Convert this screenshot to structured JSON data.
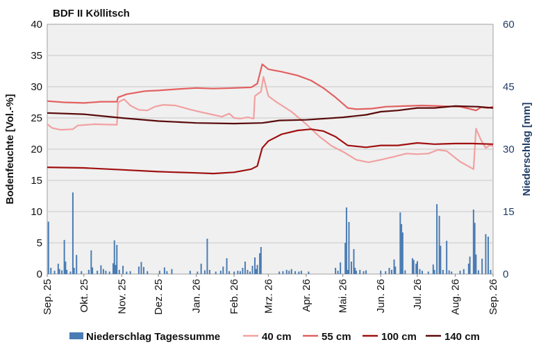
{
  "chart_data": {
    "type": "line",
    "title": "BDF II Köllitsch",
    "ylabel_left": "Bodenfeuchte [Vol.-%]",
    "ylabel_right": "Niederschlag [mm]",
    "ylim_left": [
      0,
      40
    ],
    "ylim_right": [
      0,
      60
    ],
    "yticks_left": [
      "0",
      "5",
      "10",
      "15",
      "20",
      "25",
      "30",
      "35",
      "40"
    ],
    "yticks_right": [
      "0",
      "15",
      "30",
      "45",
      "60"
    ],
    "x_range": [
      "2025-09-01",
      "2026-09-01"
    ],
    "x_tick_labels": [
      "Sep. 25",
      "Okt. 25",
      "Nov. 25",
      "Dez. 25",
      "Jan. 26",
      "Feb. 26",
      "Mrz. 26",
      "Apr. 26",
      "Mai. 26",
      "Jun. 26",
      "Jul. 26",
      "Aug. 26",
      "Sep. 26"
    ],
    "x_tick_dates": [
      "2025-09-01",
      "2025-10-01",
      "2025-11-01",
      "2025-12-01",
      "2026-01-01",
      "2026-02-01",
      "2026-03-01",
      "2026-04-01",
      "2026-05-01",
      "2026-06-01",
      "2026-07-01",
      "2026-08-01",
      "2026-09-01"
    ],
    "grid": "horizontal",
    "legend_position": "bottom",
    "series": [
      {
        "name": "40 cm",
        "axis": "left",
        "kind": "line",
        "color": "#f2a0a0",
        "points": [
          [
            "2025-09-01",
            24.0
          ],
          [
            "2025-09-05",
            23.4
          ],
          [
            "2025-09-12",
            23.1
          ],
          [
            "2025-09-22",
            23.2
          ],
          [
            "2025-09-26",
            23.8
          ],
          [
            "2025-10-10",
            24.0
          ],
          [
            "2025-10-28",
            23.9
          ],
          [
            "2025-10-29",
            27.5
          ],
          [
            "2025-11-03",
            28.0
          ],
          [
            "2025-11-08",
            27.0
          ],
          [
            "2025-11-15",
            26.3
          ],
          [
            "2025-11-22",
            26.2
          ],
          [
            "2025-11-28",
            26.8
          ],
          [
            "2025-12-05",
            27.1
          ],
          [
            "2025-12-15",
            27.0
          ],
          [
            "2025-12-28",
            26.3
          ],
          [
            "2026-01-08",
            25.8
          ],
          [
            "2026-01-15",
            25.5
          ],
          [
            "2026-01-22",
            25.2
          ],
          [
            "2026-01-28",
            25.7
          ],
          [
            "2026-02-01",
            25.0
          ],
          [
            "2026-02-06",
            24.9
          ],
          [
            "2026-02-12",
            25.1
          ],
          [
            "2026-02-17",
            24.9
          ],
          [
            "2026-02-18",
            28.5
          ],
          [
            "2026-02-20",
            28.8
          ],
          [
            "2026-02-23",
            29.2
          ],
          [
            "2026-02-25",
            31.6
          ],
          [
            "2026-03-01",
            28.5
          ],
          [
            "2026-03-08",
            27.5
          ],
          [
            "2026-03-20",
            26.0
          ],
          [
            "2026-04-01",
            24.0
          ],
          [
            "2026-04-12",
            22.0
          ],
          [
            "2026-04-22",
            20.5
          ],
          [
            "2026-05-02",
            19.5
          ],
          [
            "2026-05-12",
            18.3
          ],
          [
            "2026-05-22",
            17.9
          ],
          [
            "2026-06-01",
            18.3
          ],
          [
            "2026-06-12",
            18.8
          ],
          [
            "2026-06-22",
            19.3
          ],
          [
            "2026-07-01",
            19.2
          ],
          [
            "2026-07-10",
            19.3
          ],
          [
            "2026-07-18",
            19.9
          ],
          [
            "2026-07-25",
            19.7
          ],
          [
            "2026-08-05",
            18.0
          ],
          [
            "2026-08-16",
            16.8
          ],
          [
            "2026-08-18",
            23.3
          ],
          [
            "2026-08-22",
            21.5
          ],
          [
            "2026-08-26",
            20.2
          ],
          [
            "2026-08-29",
            20.6
          ],
          [
            "2026-09-01",
            20.5
          ]
        ]
      },
      {
        "name": "55 cm",
        "axis": "left",
        "kind": "line",
        "color": "#e36060",
        "points": [
          [
            "2025-09-01",
            27.7
          ],
          [
            "2025-09-15",
            27.5
          ],
          [
            "2025-10-01",
            27.4
          ],
          [
            "2025-10-15",
            27.6
          ],
          [
            "2025-10-28",
            27.6
          ],
          [
            "2025-10-29",
            28.3
          ],
          [
            "2025-11-05",
            28.8
          ],
          [
            "2025-11-20",
            29.3
          ],
          [
            "2025-12-01",
            29.4
          ],
          [
            "2025-12-15",
            29.6
          ],
          [
            "2026-01-01",
            29.8
          ],
          [
            "2026-01-15",
            29.7
          ],
          [
            "2026-02-01",
            29.8
          ],
          [
            "2026-02-15",
            29.9
          ],
          [
            "2026-02-20",
            30.5
          ],
          [
            "2026-02-24",
            33.6
          ],
          [
            "2026-03-01",
            32.8
          ],
          [
            "2026-03-12",
            32.4
          ],
          [
            "2026-03-25",
            31.8
          ],
          [
            "2026-04-05",
            31.0
          ],
          [
            "2026-04-15",
            29.8
          ],
          [
            "2026-04-25",
            28.3
          ],
          [
            "2026-05-05",
            26.6
          ],
          [
            "2026-05-12",
            26.4
          ],
          [
            "2026-05-25",
            26.5
          ],
          [
            "2026-06-05",
            26.8
          ],
          [
            "2026-06-20",
            26.9
          ],
          [
            "2026-07-05",
            27.0
          ],
          [
            "2026-07-20",
            26.9
          ],
          [
            "2026-08-05",
            26.8
          ],
          [
            "2026-08-12",
            26.5
          ],
          [
            "2026-08-18",
            26.2
          ],
          [
            "2026-08-22",
            26.7
          ],
          [
            "2026-08-28",
            26.6
          ],
          [
            "2026-09-01",
            26.8
          ]
        ]
      },
      {
        "name": "100 cm",
        "axis": "left",
        "kind": "line",
        "color": "#a01010",
        "points": [
          [
            "2025-09-01",
            17.1
          ],
          [
            "2025-10-01",
            17.0
          ],
          [
            "2025-11-01",
            16.7
          ],
          [
            "2025-12-01",
            16.4
          ],
          [
            "2026-01-01",
            16.2
          ],
          [
            "2026-01-15",
            16.1
          ],
          [
            "2026-02-01",
            16.3
          ],
          [
            "2026-02-15",
            16.8
          ],
          [
            "2026-02-20",
            17.3
          ],
          [
            "2026-02-24",
            20.2
          ],
          [
            "2026-03-01",
            21.3
          ],
          [
            "2026-03-12",
            22.4
          ],
          [
            "2026-03-25",
            23.0
          ],
          [
            "2026-04-05",
            23.2
          ],
          [
            "2026-04-15",
            22.9
          ],
          [
            "2026-04-25",
            22.0
          ],
          [
            "2026-05-05",
            20.6
          ],
          [
            "2026-05-20",
            20.3
          ],
          [
            "2026-06-01",
            20.6
          ],
          [
            "2026-06-15",
            20.6
          ],
          [
            "2026-07-01",
            21.0
          ],
          [
            "2026-07-15",
            20.8
          ],
          [
            "2026-08-01",
            20.9
          ],
          [
            "2026-08-15",
            20.9
          ],
          [
            "2026-09-01",
            20.8
          ]
        ]
      },
      {
        "name": "140 cm",
        "axis": "left",
        "kind": "line",
        "color": "#5a0a0a",
        "points": [
          [
            "2025-09-01",
            25.8
          ],
          [
            "2025-10-01",
            25.6
          ],
          [
            "2025-11-01",
            25.0
          ],
          [
            "2025-12-01",
            24.5
          ],
          [
            "2026-01-01",
            24.2
          ],
          [
            "2026-02-01",
            24.1
          ],
          [
            "2026-02-24",
            24.2
          ],
          [
            "2026-03-10",
            24.6
          ],
          [
            "2026-04-01",
            24.7
          ],
          [
            "2026-05-01",
            25.1
          ],
          [
            "2026-05-20",
            25.5
          ],
          [
            "2026-06-01",
            26.0
          ],
          [
            "2026-06-15",
            26.2
          ],
          [
            "2026-07-01",
            26.6
          ],
          [
            "2026-07-15",
            26.6
          ],
          [
            "2026-08-01",
            26.9
          ],
          [
            "2026-08-20",
            26.8
          ],
          [
            "2026-09-01",
            26.6
          ]
        ]
      },
      {
        "name": "Niederschlag Tagessumme",
        "axis": "right",
        "kind": "bar",
        "color": "#4a7cb3",
        "points": [
          [
            "2025-09-02",
            12.6
          ],
          [
            "2025-09-04",
            1.5
          ],
          [
            "2025-09-07",
            0.8
          ],
          [
            "2025-09-10",
            2.5
          ],
          [
            "2025-09-11",
            1.2
          ],
          [
            "2025-09-13",
            0.9
          ],
          [
            "2025-09-15",
            8.2
          ],
          [
            "2025-09-16",
            3.0
          ],
          [
            "2025-09-17",
            1.0
          ],
          [
            "2025-09-20",
            0.6
          ],
          [
            "2025-09-22",
            19.6
          ],
          [
            "2025-09-23",
            1.5
          ],
          [
            "2025-09-25",
            4.6
          ],
          [
            "2025-09-29",
            0.7
          ],
          [
            "2025-10-05",
            1.0
          ],
          [
            "2025-10-07",
            5.7
          ],
          [
            "2025-10-08",
            1.6
          ],
          [
            "2025-10-12",
            0.8
          ],
          [
            "2025-10-15",
            2.1
          ],
          [
            "2025-10-17",
            1.2
          ],
          [
            "2025-10-19",
            0.8
          ],
          [
            "2025-10-22",
            0.6
          ],
          [
            "2025-10-25",
            2.6
          ],
          [
            "2025-10-26",
            8.1
          ],
          [
            "2025-10-27",
            2.2
          ],
          [
            "2025-10-28",
            7.0
          ],
          [
            "2025-10-30",
            1.0
          ],
          [
            "2025-11-02",
            2.0
          ],
          [
            "2025-11-05",
            0.6
          ],
          [
            "2025-11-08",
            0.7
          ],
          [
            "2025-11-15",
            1.8
          ],
          [
            "2025-11-17",
            2.9
          ],
          [
            "2025-11-19",
            1.7
          ],
          [
            "2025-11-22",
            0.7
          ],
          [
            "2025-12-02",
            0.8
          ],
          [
            "2025-12-06",
            1.6
          ],
          [
            "2025-12-08",
            0.7
          ],
          [
            "2025-12-12",
            1.2
          ],
          [
            "2025-12-27",
            0.8
          ],
          [
            "2026-01-02",
            0.6
          ],
          [
            "2026-01-05",
            2.5
          ],
          [
            "2026-01-08",
            0.9
          ],
          [
            "2026-01-10",
            8.5
          ],
          [
            "2026-01-12",
            1.0
          ],
          [
            "2026-01-17",
            0.6
          ],
          [
            "2026-01-21",
            0.8
          ],
          [
            "2026-01-23",
            1.8
          ],
          [
            "2026-01-26",
            3.8
          ],
          [
            "2026-01-28",
            0.7
          ],
          [
            "2026-02-01",
            0.6
          ],
          [
            "2026-02-04",
            0.8
          ],
          [
            "2026-02-06",
            0.7
          ],
          [
            "2026-02-08",
            1.5
          ],
          [
            "2026-02-10",
            3.0
          ],
          [
            "2026-02-12",
            1.0
          ],
          [
            "2026-02-14",
            0.6
          ],
          [
            "2026-02-16",
            2.0
          ],
          [
            "2026-02-18",
            4.0
          ],
          [
            "2026-02-19",
            1.2
          ],
          [
            "2026-02-20",
            2.2
          ],
          [
            "2026-02-22",
            5.0
          ],
          [
            "2026-02-23",
            6.5
          ],
          [
            "2026-03-10",
            0.6
          ],
          [
            "2026-03-13",
            0.7
          ],
          [
            "2026-03-16",
            1.0
          ],
          [
            "2026-03-18",
            0.8
          ],
          [
            "2026-03-20",
            1.2
          ],
          [
            "2026-03-23",
            0.7
          ],
          [
            "2026-03-26",
            0.6
          ],
          [
            "2026-03-28",
            0.8
          ],
          [
            "2026-04-03",
            0.6
          ],
          [
            "2026-04-25",
            1.5
          ],
          [
            "2026-04-27",
            0.8
          ],
          [
            "2026-04-29",
            2.8
          ],
          [
            "2026-05-03",
            7.5
          ],
          [
            "2026-05-04",
            16.0
          ],
          [
            "2026-05-05",
            1.0
          ],
          [
            "2026-05-06",
            12.5
          ],
          [
            "2026-05-08",
            3.0
          ],
          [
            "2026-05-10",
            6.0
          ],
          [
            "2026-05-11",
            1.5
          ],
          [
            "2026-05-12",
            0.8
          ],
          [
            "2026-05-15",
            1.0
          ],
          [
            "2026-05-18",
            0.7
          ],
          [
            "2026-05-20",
            0.9
          ],
          [
            "2026-06-01",
            0.8
          ],
          [
            "2026-06-05",
            0.7
          ],
          [
            "2026-06-08",
            1.5
          ],
          [
            "2026-06-10",
            1.0
          ],
          [
            "2026-06-12",
            3.5
          ],
          [
            "2026-06-13",
            1.8
          ],
          [
            "2026-06-17",
            14.8
          ],
          [
            "2026-06-18",
            12.0
          ],
          [
            "2026-06-19",
            10.0
          ],
          [
            "2026-06-21",
            0.9
          ],
          [
            "2026-06-27",
            3.8
          ],
          [
            "2026-06-28",
            3.4
          ],
          [
            "2026-06-30",
            2.5
          ],
          [
            "2026-07-01",
            3.1
          ],
          [
            "2026-07-03",
            1.2
          ],
          [
            "2026-07-05",
            0.8
          ],
          [
            "2026-07-10",
            0.6
          ],
          [
            "2026-07-14",
            2.3
          ],
          [
            "2026-07-15",
            1.0
          ],
          [
            "2026-07-17",
            16.8
          ],
          [
            "2026-07-19",
            14.0
          ],
          [
            "2026-07-20",
            6.8
          ],
          [
            "2026-07-22",
            1.0
          ],
          [
            "2026-07-25",
            8.0
          ],
          [
            "2026-07-27",
            0.9
          ],
          [
            "2026-07-29",
            0.6
          ],
          [
            "2026-08-05",
            0.8
          ],
          [
            "2026-08-08",
            1.2
          ],
          [
            "2026-08-12",
            2.5
          ],
          [
            "2026-08-13",
            4.2
          ],
          [
            "2026-08-16",
            15.5
          ],
          [
            "2026-08-17",
            12.3
          ],
          [
            "2026-08-18",
            4.7
          ],
          [
            "2026-08-20",
            0.9
          ],
          [
            "2026-08-23",
            3.7
          ],
          [
            "2026-08-26",
            9.6
          ],
          [
            "2026-08-28",
            9.0
          ],
          [
            "2026-08-30",
            1.0
          ]
        ]
      }
    ],
    "legend": [
      {
        "label": "Niederschlag Tagessumme",
        "symbol": "bar",
        "color": "#4a7cb3"
      },
      {
        "label": "40 cm",
        "symbol": "line",
        "color": "#f2a0a0"
      },
      {
        "label": "55 cm",
        "symbol": "line",
        "color": "#e36060"
      },
      {
        "label": "100 cm",
        "symbol": "line",
        "color": "#a01010"
      },
      {
        "label": "140 cm",
        "symbol": "line",
        "color": "#5a0a0a"
      }
    ]
  }
}
